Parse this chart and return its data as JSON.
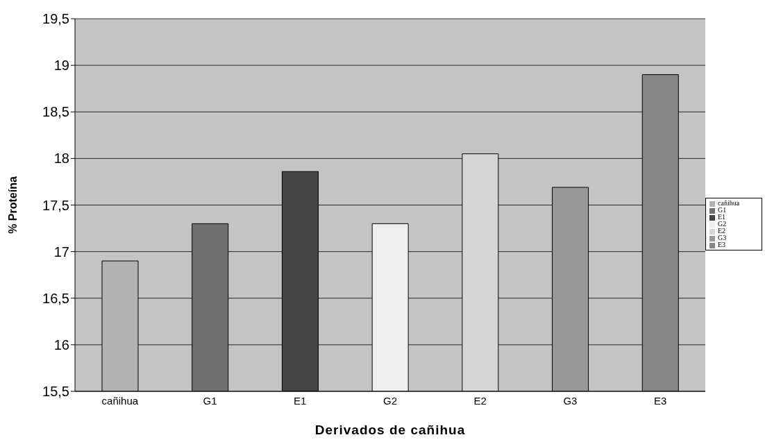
{
  "chart_data": {
    "type": "bar",
    "xlabel": "Derivados de cañihua",
    "ylabel": "% Proteína",
    "categories": [
      "cañihua",
      "G1",
      "E1",
      "G2",
      "E2",
      "G3",
      "E3"
    ],
    "series": [
      {
        "name": "cañihua",
        "color": "#b2b2b2",
        "values": [
          16.9,
          null,
          null,
          null,
          null,
          null,
          null
        ]
      },
      {
        "name": "G1",
        "color": "#707070",
        "values": [
          null,
          17.3,
          null,
          null,
          null,
          null,
          null
        ]
      },
      {
        "name": "E1",
        "color": "#444444",
        "values": [
          null,
          null,
          17.86,
          null,
          null,
          null,
          null
        ]
      },
      {
        "name": "G2",
        "color": "#eeeeee",
        "values": [
          null,
          null,
          null,
          17.3,
          null,
          null,
          null
        ]
      },
      {
        "name": "E2",
        "color": "#d6d6d6",
        "values": [
          null,
          null,
          null,
          null,
          18.05,
          null,
          null
        ]
      },
      {
        "name": "G3",
        "color": "#989898",
        "values": [
          null,
          null,
          null,
          null,
          null,
          17.69,
          null
        ]
      },
      {
        "name": "E3",
        "color": "#868686",
        "values": [
          null,
          null,
          null,
          null,
          null,
          null,
          18.9
        ]
      }
    ],
    "stacked": true,
    "ylim": [
      15.5,
      19.5
    ],
    "yticks": [
      {
        "value": 15.5,
        "label": "15,5"
      },
      {
        "value": 16,
        "label": "16"
      },
      {
        "value": 16.5,
        "label": "16,5"
      },
      {
        "value": 17,
        "label": "17"
      },
      {
        "value": 17.5,
        "label": "17,5"
      },
      {
        "value": 18,
        "label": "18"
      },
      {
        "value": 18.5,
        "label": "18,5"
      },
      {
        "value": 19,
        "label": "19"
      },
      {
        "value": 19.5,
        "label": "19,5"
      }
    ],
    "grid": "y",
    "legend": "right"
  }
}
